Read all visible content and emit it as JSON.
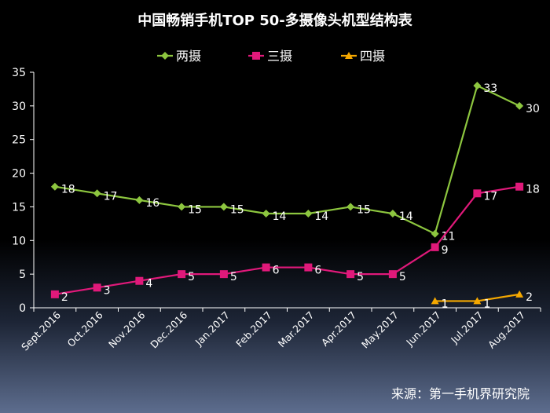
{
  "chart_data": {
    "type": "line",
    "title": "中国畅销手机TOP 50-多摄像头机型结构表",
    "categories": [
      "Sept.2016",
      "Oct.2016",
      "Nov.2016",
      "Dec.2016",
      "Jan.2017",
      "Feb.2017",
      "Mar.2017",
      "Apr.2017",
      "May.2017",
      "Jun.2017",
      "Jul.2017",
      "Aug.2017"
    ],
    "series": [
      {
        "name": "两摄",
        "color": "#8dc63f",
        "marker": "diamond",
        "values": [
          18,
          17,
          16,
          15,
          15,
          14,
          14,
          15,
          14,
          11,
          33,
          30
        ]
      },
      {
        "name": "三摄",
        "color": "#e0197a",
        "marker": "square",
        "values": [
          2,
          3,
          4,
          5,
          5,
          6,
          6,
          5,
          5,
          9,
          17,
          18
        ]
      },
      {
        "name": "四摄",
        "color": "#f5a800",
        "marker": "triangle",
        "values": [
          null,
          null,
          null,
          null,
          null,
          null,
          null,
          null,
          null,
          1,
          1,
          2
        ]
      }
    ],
    "ylim": [
      0,
      35
    ],
    "yticks": [
      0,
      5,
      10,
      15,
      20,
      25,
      30,
      35
    ],
    "grid": false,
    "legend": "top-center"
  },
  "source": "来源：第一手机界研究院"
}
